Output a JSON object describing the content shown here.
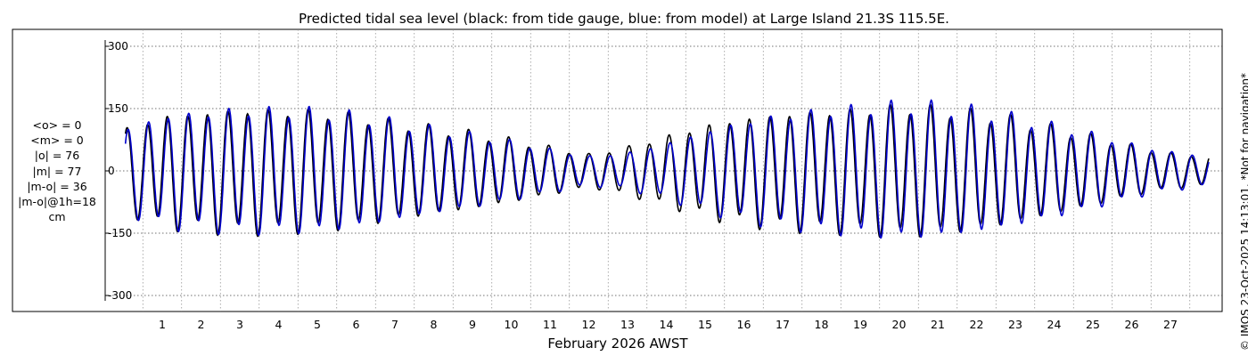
{
  "chart_data": {
    "type": "line",
    "title": "Predicted tidal sea level (black: from tide gauge, blue: from model) at Large Island 21.3S 115.5E.",
    "xlabel": "February 2026 AWST",
    "ylabel": "",
    "ylim": [
      -320,
      320
    ],
    "xlim": [
      0.05,
      28.0
    ],
    "yticks": [
      300,
      150,
      0,
      -150,
      -300
    ],
    "xticks": [
      "1",
      "2",
      "3",
      "4",
      "5",
      "6",
      "7",
      "8",
      "9",
      "10",
      "11",
      "12",
      "13",
      "14",
      "15",
      "16",
      "17",
      "18",
      "19",
      "20",
      "21",
      "22",
      "23",
      "24",
      "25",
      "26",
      "27"
    ],
    "grid": true,
    "series": [
      {
        "name": "from tide gauge",
        "color": "#000000",
        "day_envelope": [
          [
            0.2,
            100
          ],
          [
            1,
            128
          ],
          [
            2,
            135
          ],
          [
            3,
            143
          ],
          [
            4,
            140
          ],
          [
            5,
            138
          ],
          [
            6,
            128
          ],
          [
            7,
            112
          ],
          [
            8,
            100
          ],
          [
            9,
            88
          ],
          [
            10,
            72
          ],
          [
            11,
            55
          ],
          [
            12,
            38
          ],
          [
            13,
            55
          ],
          [
            14,
            80
          ],
          [
            15,
            105
          ],
          [
            16,
            122
          ],
          [
            17,
            132
          ],
          [
            18,
            138
          ],
          [
            19,
            142
          ],
          [
            20,
            150
          ],
          [
            21,
            145
          ],
          [
            22,
            135
          ],
          [
            23,
            120
          ],
          [
            24,
            100
          ],
          [
            25,
            80
          ],
          [
            26,
            58
          ],
          [
            27,
            40
          ],
          [
            28,
            35
          ]
        ]
      },
      {
        "name": "from model",
        "color": "#0000cc",
        "day_envelope": [
          [
            0.2,
            100
          ],
          [
            1,
            128
          ],
          [
            2,
            135
          ],
          [
            3,
            143
          ],
          [
            4,
            142
          ],
          [
            5,
            140
          ],
          [
            6,
            130
          ],
          [
            7,
            114
          ],
          [
            8,
            98
          ],
          [
            9,
            84
          ],
          [
            10,
            68
          ],
          [
            11,
            50
          ],
          [
            12,
            34
          ],
          [
            13,
            42
          ],
          [
            14,
            64
          ],
          [
            15,
            92
          ],
          [
            16,
            115
          ],
          [
            17,
            130
          ],
          [
            18,
            140
          ],
          [
            19,
            148
          ],
          [
            20,
            155
          ],
          [
            21,
            152
          ],
          [
            22,
            142
          ],
          [
            23,
            126
          ],
          [
            24,
            106
          ],
          [
            25,
            86
          ],
          [
            26,
            62
          ],
          [
            27,
            44
          ],
          [
            28,
            36
          ]
        ]
      }
    ],
    "stats": {
      "mean_obs": "<o> = 0",
      "mean_model": "<m> = 0",
      "abs_obs": "|o| = 76",
      "abs_model": "|m| = 77",
      "abs_diff": "|m-o| = 36",
      "abs_diff_1h": "|m-o|@1h=18",
      "unit": "cm"
    },
    "footer": "© IMOS 23-Oct-2025 14:13:01. *Not for navigation*"
  }
}
